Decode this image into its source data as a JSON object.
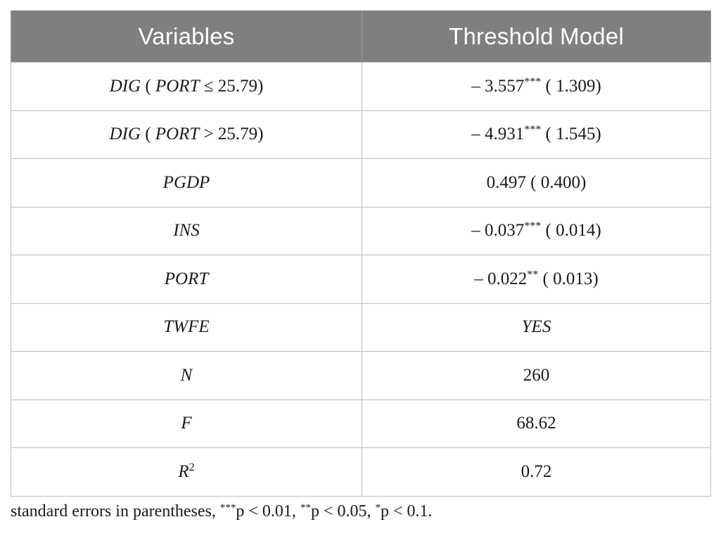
{
  "table": {
    "headers": [
      "Variables",
      "Threshold Model"
    ],
    "rows": [
      {
        "var_main": "DIG",
        "var_open": " ( ",
        "var_port": "PORT",
        "var_cond": " ≤ 25.79)",
        "coef": "– 3.557",
        "stars": "***",
        "se": " (   1.309)"
      },
      {
        "var_main": "DIG",
        "var_open": " ( ",
        "var_port": "PORT",
        "var_cond": " > 25.79)",
        "coef": "– 4.931",
        "stars": "***",
        "se": " (   1.545)"
      },
      {
        "var_main": "PGDP",
        "coef": "0.497",
        "stars": "",
        "se": " ( 0.400)"
      },
      {
        "var_main": "INS",
        "coef": "– 0.037",
        "stars": "***",
        "se": " ( 0.014)"
      },
      {
        "var_main": "PORT",
        "coef": "– 0.022",
        "stars": "**",
        "se": " ( 0.013)"
      },
      {
        "var_main": "TWFE",
        "value_italic": "YES"
      },
      {
        "var_main": "N",
        "value": "260"
      },
      {
        "var_main": "F",
        "value": "68.62"
      },
      {
        "var_main": "R",
        "var_sup": "2",
        "value": "0.72"
      }
    ]
  },
  "footnote": {
    "lead": "standard errors in parentheses, ",
    "s1": "***",
    "t1": "p < 0.01, ",
    "s2": "**",
    "t2": "p < 0.05, ",
    "s3": "*",
    "t3": "p < 0.1."
  }
}
